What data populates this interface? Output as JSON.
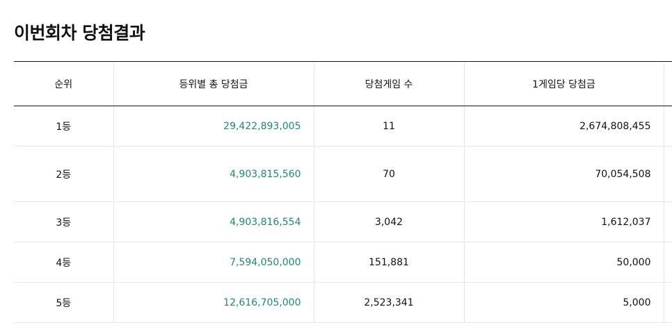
{
  "section": {
    "title": "이번회차 당첨결과"
  },
  "colors": {
    "total_amount": "#1a8a73",
    "header_border": "#111111",
    "row_border": "#e6e6e6"
  },
  "table": {
    "headers": [
      "순위",
      "등위별 총 당첨금",
      "당첨게임 수",
      "1게임당 당첨금"
    ],
    "rows": [
      {
        "rank": "1등",
        "total": "29,422,893,005",
        "count": "11",
        "per_game": "2,674,808,455"
      },
      {
        "rank": "2등",
        "total": "4,903,815,560",
        "count": "70",
        "per_game": "70,054,508"
      },
      {
        "rank": "3등",
        "total": "4,903,816,554",
        "count": "3,042",
        "per_game": "1,612,037"
      },
      {
        "rank": "4등",
        "total": "7,594,050,000",
        "count": "151,881",
        "per_game": "50,000"
      },
      {
        "rank": "5등",
        "total": "12,616,705,000",
        "count": "2,523,341",
        "per_game": "5,000"
      }
    ]
  }
}
